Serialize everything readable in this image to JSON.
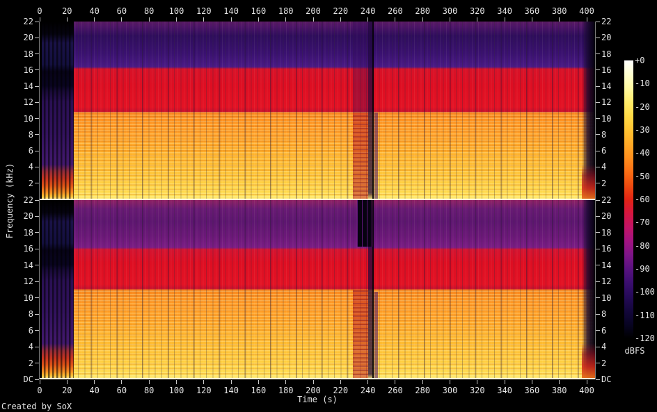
{
  "footer": {
    "credit": "Created by SoX"
  },
  "axes": {
    "time_label": "Time (s)",
    "freq_label": "Frequency (kHz)",
    "colorbar_label": "dBFS"
  },
  "chart_data": {
    "type": "heatmap",
    "variant": "stereo-audio-spectrogram",
    "generator": "SoX",
    "channels": 2,
    "time_axis": {
      "label": "Time (s)",
      "range_s": [
        0,
        406
      ],
      "ticks": [
        0,
        20,
        40,
        60,
        80,
        100,
        120,
        140,
        160,
        180,
        200,
        220,
        240,
        260,
        280,
        300,
        320,
        340,
        360,
        380,
        400
      ]
    },
    "freq_axis": {
      "label": "Frequency (kHz)",
      "range_khz": [
        0,
        22
      ]
    },
    "panels": [
      {
        "name": "channel-1-top",
        "y_tick_labels": [
          "22",
          "20",
          "18",
          "16",
          "14",
          "12",
          "10",
          "8",
          "6",
          "4",
          "2"
        ]
      },
      {
        "name": "channel-2-bottom",
        "y_tick_labels": [
          "22",
          "20",
          "18",
          "16",
          "14",
          "12",
          "10",
          "8",
          "6",
          "4",
          "2",
          "DC"
        ]
      }
    ],
    "colorbar": {
      "label": "dBFS",
      "range_dbfs": [
        "+0",
        "-120"
      ],
      "tick_labels": [
        "+0",
        "-10",
        "-20",
        "-30",
        "-40",
        "-50",
        "-60",
        "-70",
        "-80",
        "-90",
        "-100",
        "-110",
        "-120"
      ],
      "gradient_top_to_bottom": [
        "#ffffff",
        "#ffffcf",
        "#fff9a0",
        "#ffec6a",
        "#ffda46",
        "#ffc332",
        "#ffaa26",
        "#ff8f1d",
        "#fb6f15",
        "#ee4b0f",
        "#e22414",
        "#d61640",
        "#c21466",
        "#a31382",
        "#7e1588",
        "#591280",
        "#3b0e70",
        "#250a58",
        "#14073c",
        "#080423",
        "#000000"
      ]
    },
    "content_reading": {
      "silence_s": [
        0,
        2
      ],
      "low_energy_intro_s": [
        2,
        25
      ],
      "main_program_s": [
        25,
        397
      ],
      "breakdown_section_s": [
        229,
        246
      ],
      "dropout_column_s": [
        240,
        243
      ],
      "fade_out_s": [
        397,
        406
      ],
      "channel_1_bands": [
        {
          "khz": [
            0,
            1
          ],
          "level_dbfs": "≈ -5 to -15",
          "appearance": "bright yellow-white bass"
        },
        {
          "khz": [
            1,
            10.8
          ],
          "level_dbfs": "≈ -20 to -35",
          "appearance": "orange/yellow with harmonic striations"
        },
        {
          "khz": [
            10.8,
            16.2
          ],
          "level_dbfs": "≈ -50",
          "appearance": "solid red band"
        },
        {
          "khz": [
            16.2,
            22
          ],
          "level_dbfs": "≈ -75 to -95",
          "appearance": "indigo/purple with beat stripes"
        }
      ],
      "channel_2_bands": [
        {
          "khz": [
            0,
            1
          ],
          "level_dbfs": "≈ -5 to -15",
          "appearance": "bright yellow-white bass"
        },
        {
          "khz": [
            1,
            11
          ],
          "level_dbfs": "≈ -20 to -35",
          "appearance": "orange/yellow with harmonic striations"
        },
        {
          "khz": [
            11,
            16
          ],
          "level_dbfs": "≈ -50",
          "appearance": "solid red band"
        },
        {
          "khz": [
            16,
            22
          ],
          "level_dbfs": "≈ -65 to -80",
          "appearance": "magenta/purple, black gap at ~232-242 s"
        }
      ]
    }
  }
}
